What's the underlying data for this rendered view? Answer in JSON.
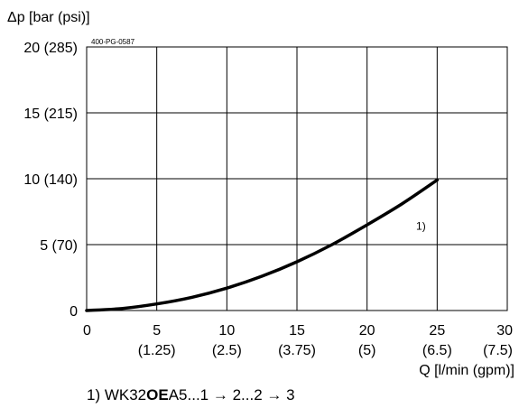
{
  "chart_data": {
    "type": "line",
    "doc_code": "400-PG-0587",
    "ylabel": "Δp [bar (psi)]",
    "xlabel": "Q [l/min (gpm)]",
    "xlim": [
      0,
      30
    ],
    "ylim": [
      0,
      20
    ],
    "grid": true,
    "x_ticks": [
      {
        "value": 0,
        "label": "0",
        "sub": ""
      },
      {
        "value": 5,
        "label": "5",
        "sub": "(1.25)"
      },
      {
        "value": 10,
        "label": "10",
        "sub": "(2.5)"
      },
      {
        "value": 15,
        "label": "15",
        "sub": "(3.75)"
      },
      {
        "value": 20,
        "label": "20",
        "sub": "(5)"
      },
      {
        "value": 25,
        "label": "25",
        "sub": "(6.5)"
      },
      {
        "value": 30,
        "label": "30",
        "sub": "(7.5)"
      }
    ],
    "y_ticks": [
      {
        "value": 0,
        "label": "0"
      },
      {
        "value": 5,
        "label": "5 (70)"
      },
      {
        "value": 10,
        "label": "10 (140)"
      },
      {
        "value": 15,
        "label": "15 (215)"
      },
      {
        "value": 20,
        "label": "20 (285)"
      }
    ],
    "series": [
      {
        "name": "1)",
        "color": "#000000",
        "x": [
          0,
          2.5,
          5,
          7.5,
          10,
          12.5,
          15,
          17.5,
          20,
          22.5,
          25
        ],
        "y": [
          0,
          0.15,
          0.5,
          1.0,
          1.7,
          2.6,
          3.7,
          5.0,
          6.5,
          8.1,
          9.9
        ]
      }
    ],
    "footnote": {
      "prefix": "1) WK32",
      "bold": "OE",
      "suffix": "A5...1 → 2...2 → 3"
    }
  }
}
